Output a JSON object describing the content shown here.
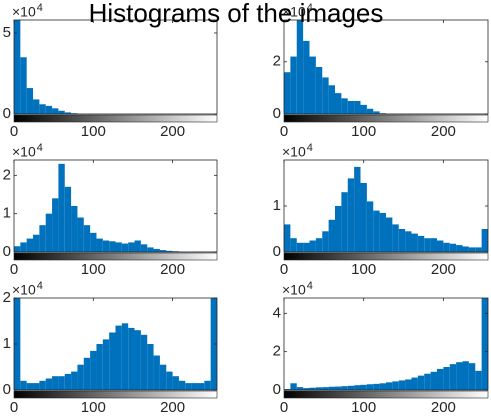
{
  "title": "Histograms of the images",
  "chart_data": [
    {
      "type": "histogram",
      "color": "#0072bd",
      "y_scale_label": "×10",
      "y_scale_exponent": "4",
      "bins": [
        0,
        8,
        16,
        24,
        32,
        40,
        48,
        56,
        64,
        72,
        80,
        88,
        96,
        104,
        112,
        120,
        128,
        136,
        144,
        152,
        160,
        168,
        176,
        184,
        192,
        200,
        208,
        216,
        224,
        232,
        240,
        248,
        256
      ],
      "values": [
        5.8,
        3.5,
        1.6,
        0.9,
        0.6,
        0.5,
        0.35,
        0.2,
        0.1,
        0.05,
        0.01,
        0.01,
        0.01,
        0.01,
        0.01,
        0.01,
        0.01,
        0.01,
        0.01,
        0.01,
        0.01,
        0.01,
        0.01,
        0.01,
        0.01,
        0.01,
        0.01,
        0.01,
        0.01,
        0.01,
        0.01,
        0.01
      ],
      "xlim": [
        0,
        256
      ],
      "ylim": [
        0,
        5.8
      ],
      "xticks": [
        0,
        100,
        200
      ],
      "yticks": [
        0,
        5
      ]
    },
    {
      "type": "histogram",
      "color": "#0072bd",
      "y_scale_label": "×10",
      "y_scale_exponent": "4",
      "bins": [
        0,
        8,
        16,
        24,
        32,
        40,
        48,
        56,
        64,
        72,
        80,
        88,
        96,
        104,
        112,
        120,
        128,
        136,
        144,
        152,
        160,
        168,
        176,
        184,
        192,
        200,
        208,
        216,
        224,
        232,
        240,
        248,
        256
      ],
      "values": [
        1.6,
        2.2,
        3.6,
        2.8,
        2.2,
        1.8,
        1.4,
        1.1,
        0.8,
        0.6,
        0.5,
        0.5,
        0.35,
        0.2,
        0.1,
        0.03,
        0.01,
        0.01,
        0.01,
        0.01,
        0.01,
        0.01,
        0.01,
        0.01,
        0.01,
        0.01,
        0.01,
        0.01,
        0.01,
        0.01,
        0.01,
        0.01
      ],
      "xlim": [
        0,
        256
      ],
      "ylim": [
        0,
        3.6
      ],
      "xticks": [
        0,
        100,
        200
      ],
      "yticks": [
        0,
        2
      ]
    },
    {
      "type": "histogram",
      "color": "#0072bd",
      "y_scale_label": "×10",
      "y_scale_exponent": "4",
      "bins": [
        0,
        8,
        16,
        24,
        32,
        40,
        48,
        56,
        64,
        72,
        80,
        88,
        96,
        104,
        112,
        120,
        128,
        136,
        144,
        152,
        160,
        168,
        176,
        184,
        192,
        200,
        208,
        216,
        224,
        232,
        240,
        248,
        256
      ],
      "values": [
        0.15,
        0.25,
        0.35,
        0.45,
        0.7,
        1.0,
        1.4,
        2.3,
        1.7,
        1.2,
        0.9,
        0.7,
        0.5,
        0.35,
        0.3,
        0.28,
        0.25,
        0.22,
        0.25,
        0.3,
        0.2,
        0.12,
        0.08,
        0.05,
        0.03,
        0.02,
        0.01,
        0.01,
        0.01,
        0.01,
        0.01,
        0.01
      ],
      "xlim": [
        0,
        256
      ],
      "ylim": [
        0,
        2.4
      ],
      "xticks": [
        0,
        100,
        200
      ],
      "yticks": [
        0,
        1,
        2
      ]
    },
    {
      "type": "histogram",
      "color": "#0072bd",
      "y_scale_label": "×10",
      "y_scale_exponent": "4",
      "bins": [
        0,
        8,
        16,
        24,
        32,
        40,
        48,
        56,
        64,
        72,
        80,
        88,
        96,
        104,
        112,
        120,
        128,
        136,
        144,
        152,
        160,
        168,
        176,
        184,
        192,
        200,
        208,
        216,
        224,
        232,
        240,
        248,
        256
      ],
      "values": [
        0.6,
        0.3,
        0.2,
        0.2,
        0.25,
        0.3,
        0.45,
        0.7,
        1.0,
        1.3,
        1.6,
        1.85,
        1.5,
        1.1,
        0.9,
        0.85,
        0.75,
        0.6,
        0.5,
        0.45,
        0.4,
        0.35,
        0.3,
        0.3,
        0.25,
        0.2,
        0.18,
        0.15,
        0.12,
        0.1,
        0.1,
        0.5
      ],
      "xlim": [
        0,
        256
      ],
      "ylim": [
        0,
        2.0
      ],
      "xticks": [
        0,
        100,
        200
      ],
      "yticks": [
        0,
        1
      ]
    },
    {
      "type": "histogram",
      "color": "#0072bd",
      "y_scale_label": "×10",
      "y_scale_exponent": "4",
      "bins": [
        0,
        8,
        16,
        24,
        32,
        40,
        48,
        56,
        64,
        72,
        80,
        88,
        96,
        104,
        112,
        120,
        128,
        136,
        144,
        152,
        160,
        168,
        176,
        184,
        192,
        200,
        208,
        216,
        224,
        232,
        240,
        248,
        256
      ],
      "values": [
        2.0,
        0.2,
        0.15,
        0.15,
        0.2,
        0.25,
        0.3,
        0.3,
        0.35,
        0.4,
        0.55,
        0.7,
        0.85,
        1.0,
        1.1,
        1.25,
        1.4,
        1.45,
        1.35,
        1.3,
        1.2,
        1.0,
        0.75,
        0.55,
        0.4,
        0.3,
        0.2,
        0.15,
        0.15,
        0.15,
        0.2,
        2.0
      ],
      "xlim": [
        0,
        256
      ],
      "ylim": [
        0,
        2
      ],
      "xticks": [
        0,
        100,
        200
      ],
      "yticks": [
        0,
        1,
        2
      ]
    },
    {
      "type": "histogram",
      "color": "#0072bd",
      "y_scale_label": "×10",
      "y_scale_exponent": "4",
      "bins": [
        0,
        8,
        16,
        24,
        32,
        40,
        48,
        56,
        64,
        72,
        80,
        88,
        96,
        104,
        112,
        120,
        128,
        136,
        144,
        152,
        160,
        168,
        176,
        184,
        192,
        200,
        208,
        216,
        224,
        232,
        240,
        248,
        256
      ],
      "values": [
        0.05,
        0.35,
        0.15,
        0.1,
        0.12,
        0.14,
        0.15,
        0.17,
        0.18,
        0.2,
        0.22,
        0.25,
        0.27,
        0.3,
        0.32,
        0.35,
        0.4,
        0.45,
        0.5,
        0.55,
        0.65,
        0.75,
        0.85,
        0.95,
        1.1,
        1.2,
        1.35,
        1.45,
        1.5,
        1.4,
        1.0,
        4.8
      ],
      "xlim": [
        0,
        256
      ],
      "ylim": [
        0,
        4.8
      ],
      "xticks": [
        0,
        100,
        200
      ],
      "yticks": [
        0,
        2,
        4
      ]
    }
  ]
}
